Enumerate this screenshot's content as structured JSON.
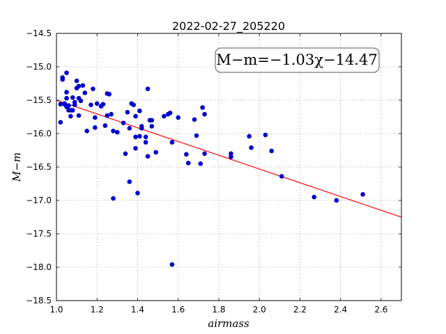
{
  "chart_data": {
    "type": "scatter",
    "title": "2022-02-27_205220",
    "xlabel": "airmass",
    "ylabel": "M−m",
    "xlim": [
      1.0,
      2.7
    ],
    "ylim": [
      -14.5,
      -18.5
    ],
    "y_inverted": true,
    "grid": true,
    "x_ticks": [
      "1.0",
      "1.2",
      "1.4",
      "1.6",
      "1.8",
      "2.0",
      "2.2",
      "2.4",
      "2.6"
    ],
    "y_ticks": [
      "−14.5",
      "−15.0",
      "−15.5",
      "−16.0",
      "−16.5",
      "−17.0",
      "−17.5",
      "−18.0",
      "−18.5"
    ],
    "annotation": "M−m=−1.03χ−14.47",
    "fit": {
      "slope": -1.03,
      "intercept": -14.47
    },
    "colors": {
      "points": "#0000cc",
      "fit_line": "#ff0000",
      "grid": "#888888"
    },
    "points": [
      [
        1.02,
        -15.83
      ],
      [
        1.02,
        -15.56
      ],
      [
        1.03,
        -15.19
      ],
      [
        1.03,
        -15.16
      ],
      [
        1.04,
        -15.55
      ],
      [
        1.04,
        -15.56
      ],
      [
        1.05,
        -15.6
      ],
      [
        1.05,
        -15.09
      ],
      [
        1.05,
        -15.47
      ],
      [
        1.05,
        -15.38
      ],
      [
        1.06,
        -15.65
      ],
      [
        1.06,
        -15.58
      ],
      [
        1.07,
        -15.65
      ],
      [
        1.07,
        -15.74
      ],
      [
        1.08,
        -15.46
      ],
      [
        1.08,
        -15.65
      ],
      [
        1.09,
        -15.53
      ],
      [
        1.09,
        -15.57
      ],
      [
        1.1,
        -15.32
      ],
      [
        1.1,
        -15.21
      ],
      [
        1.11,
        -15.29
      ],
      [
        1.11,
        -15.47
      ],
      [
        1.11,
        -15.73
      ],
      [
        1.12,
        -15.51
      ],
      [
        1.13,
        -15.28
      ],
      [
        1.14,
        -15.39
      ],
      [
        1.15,
        -15.96
      ],
      [
        1.17,
        -15.57
      ],
      [
        1.18,
        -15.33
      ],
      [
        1.19,
        -15.91
      ],
      [
        1.19,
        -15.76
      ],
      [
        1.2,
        -15.55
      ],
      [
        1.22,
        -15.59
      ],
      [
        1.23,
        -15.56
      ],
      [
        1.24,
        -15.88
      ],
      [
        1.25,
        -15.4
      ],
      [
        1.25,
        -15.73
      ],
      [
        1.26,
        -15.41
      ],
      [
        1.27,
        -15.71
      ],
      [
        1.28,
        -16.97
      ],
      [
        1.28,
        -15.96
      ],
      [
        1.3,
        -15.98
      ],
      [
        1.33,
        -15.84
      ],
      [
        1.34,
        -16.3
      ],
      [
        1.35,
        -15.68
      ],
      [
        1.36,
        -16.72
      ],
      [
        1.36,
        -15.92
      ],
      [
        1.37,
        -15.55
      ],
      [
        1.38,
        -15.57
      ],
      [
        1.39,
        -15.74
      ],
      [
        1.39,
        -16.05
      ],
      [
        1.39,
        -16.22
      ],
      [
        1.4,
        -16.89
      ],
      [
        1.41,
        -15.66
      ],
      [
        1.41,
        -16.04
      ],
      [
        1.42,
        -15.89
      ],
      [
        1.42,
        -15.92
      ],
      [
        1.44,
        -16.05
      ],
      [
        1.44,
        -16.13
      ],
      [
        1.45,
        -15.33
      ],
      [
        1.45,
        -16.34
      ],
      [
        1.46,
        -15.8
      ],
      [
        1.47,
        -15.8
      ],
      [
        1.47,
        -15.89
      ],
      [
        1.49,
        -16.28
      ],
      [
        1.53,
        -15.74
      ],
      [
        1.55,
        -15.71
      ],
      [
        1.56,
        -15.69
      ],
      [
        1.57,
        -16.13
      ],
      [
        1.57,
        -17.96
      ],
      [
        1.6,
        -15.76
      ],
      [
        1.64,
        -16.31
      ],
      [
        1.65,
        -16.44
      ],
      [
        1.68,
        -15.79
      ],
      [
        1.69,
        -16.03
      ],
      [
        1.71,
        -16.45
      ],
      [
        1.72,
        -15.61
      ],
      [
        1.73,
        -16.3
      ],
      [
        1.73,
        -15.71
      ],
      [
        1.86,
        -16.3
      ],
      [
        1.86,
        -16.35
      ],
      [
        1.95,
        -16.04
      ],
      [
        1.96,
        -16.21
      ],
      [
        2.03,
        -16.02
      ],
      [
        2.06,
        -16.26
      ],
      [
        2.11,
        -16.64
      ],
      [
        2.27,
        -16.95
      ],
      [
        2.38,
        -17.0
      ],
      [
        2.51,
        -16.91
      ]
    ]
  }
}
